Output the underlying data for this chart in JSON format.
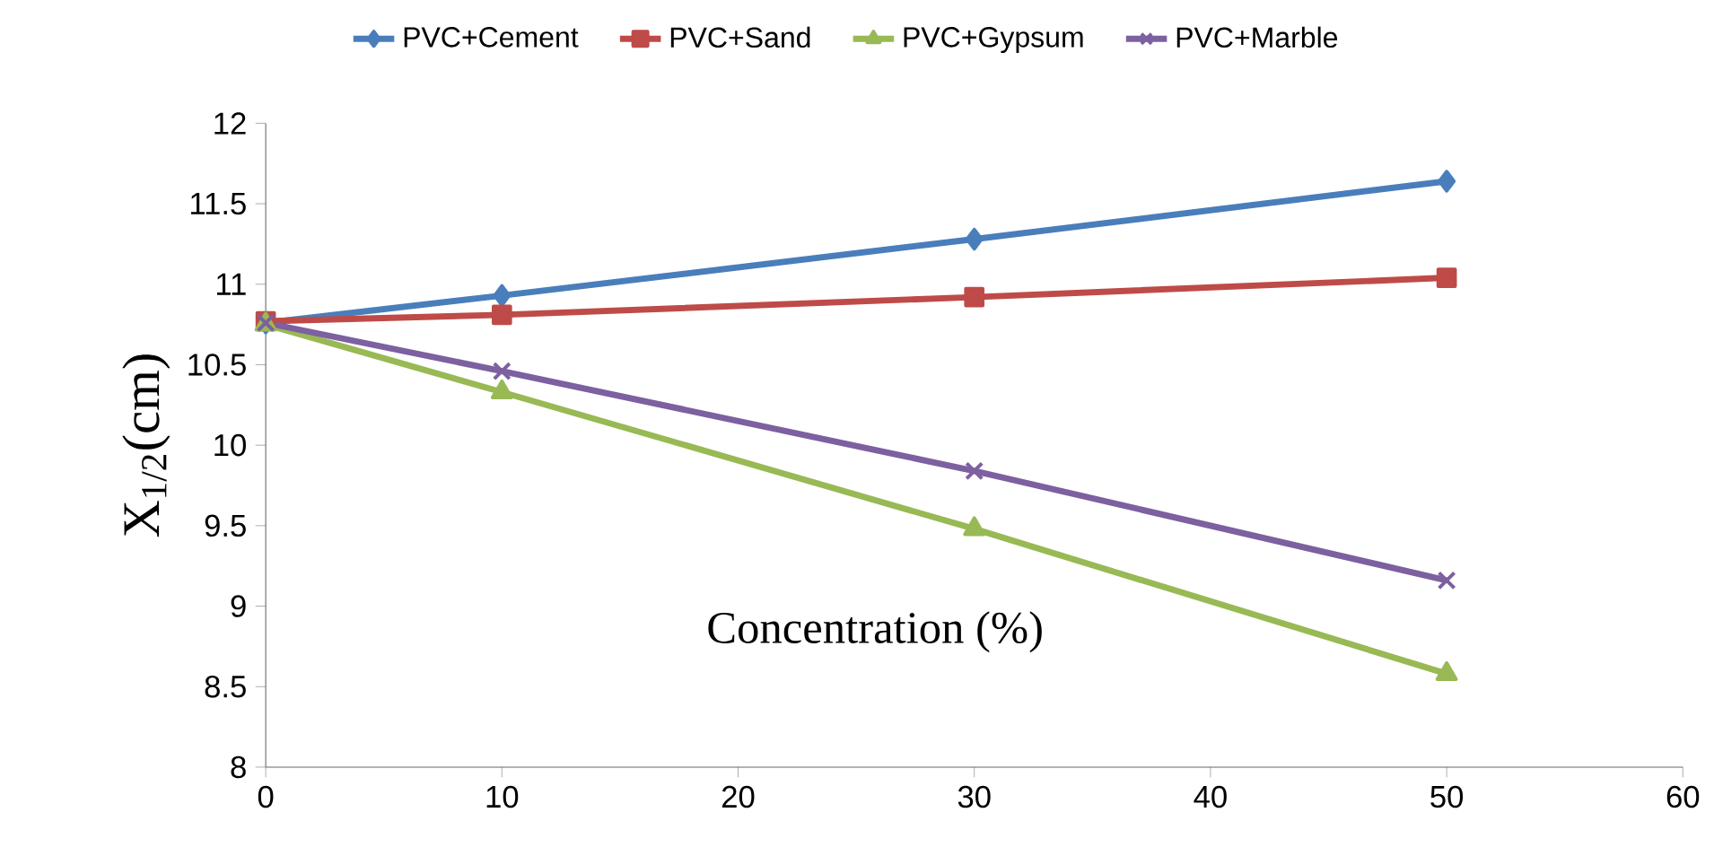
{
  "chart_data": {
    "type": "line",
    "xlabel": "Concentration (%)",
    "ylabel": "X$_{1/2}$(cm)",
    "x": [
      0,
      10,
      30,
      50
    ],
    "series": [
      {
        "name": "PVC+Cement",
        "color": "#4a7ebb",
        "marker": "diamond",
        "values": [
          10.76,
          10.93,
          11.28,
          11.64
        ]
      },
      {
        "name": "PVC+Sand",
        "color": "#be4b48",
        "marker": "square",
        "values": [
          10.77,
          10.81,
          10.92,
          11.04
        ]
      },
      {
        "name": "PVC+Gypsum",
        "color": "#98b954",
        "marker": "triangle",
        "values": [
          10.75,
          10.33,
          9.48,
          8.58
        ]
      },
      {
        "name": "PVC+Marble",
        "color": "#7d60a0",
        "marker": "cross",
        "values": [
          10.76,
          10.46,
          9.84,
          9.16
        ]
      }
    ],
    "xlim": [
      0,
      60
    ],
    "xticks": [
      0,
      10,
      20,
      30,
      40,
      50,
      60
    ],
    "ylim": [
      8,
      12
    ],
    "yticks": [
      8,
      8.5,
      9,
      9.5,
      10,
      10.5,
      11,
      11.5,
      12
    ],
    "grid": false,
    "legend": "top",
    "line_style": "solid"
  }
}
